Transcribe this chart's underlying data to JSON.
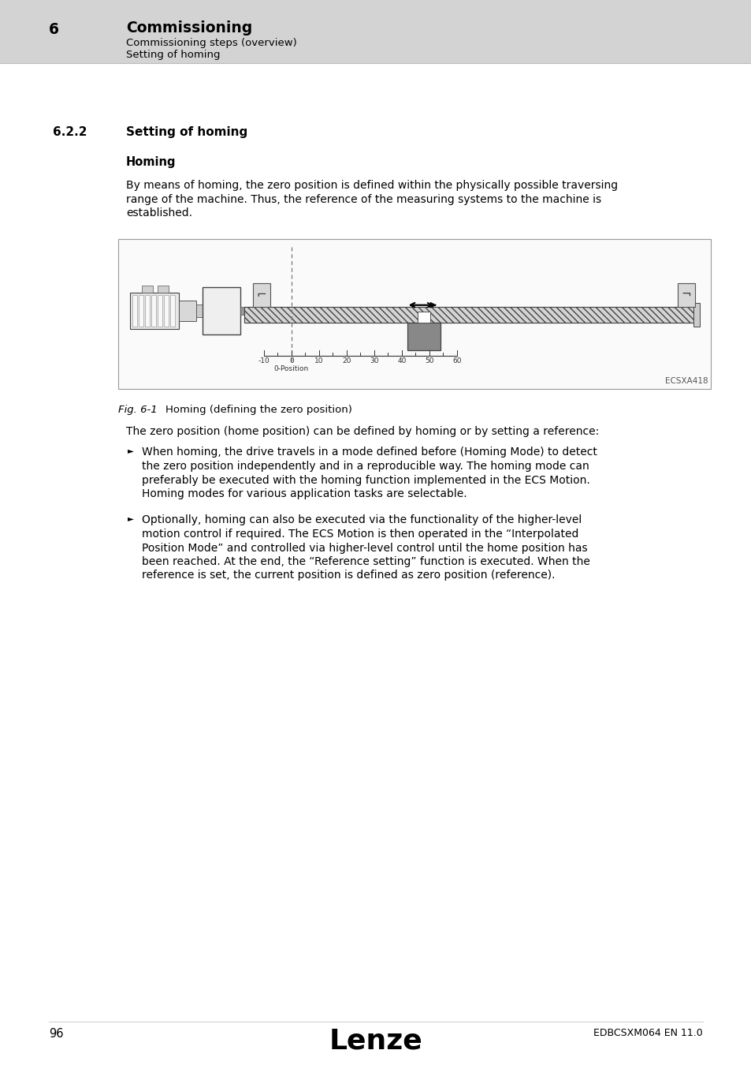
{
  "page_bg": "#ffffff",
  "header_bg": "#d3d3d3",
  "header_number": "6",
  "header_title": "Commissioning",
  "header_sub1": "Commissioning steps (overview)",
  "header_sub2": "Setting of homing",
  "section_number": "6.2.2",
  "section_title": "Setting of homing",
  "subsection_title": "Homing",
  "body_text1_lines": [
    "By means of homing, the zero position is defined within the physically possible traversing",
    "range of the machine. Thus, the reference of the measuring systems to the machine is",
    "established."
  ],
  "fig_caption_label": "Fig. 6-1",
  "fig_caption_text": "Homing (defining the zero position)",
  "fig_label": "ECSXA418",
  "body_text2": "The zero position (home position) can be defined by homing or by setting a reference:",
  "bullet1_lines": [
    "When homing, the drive travels in a mode defined before (Homing Mode) to detect",
    "the zero position independently and in a reproducible way. The homing mode can",
    "preferably be executed with the homing function implemented in the ECS Motion.",
    "Homing modes for various application tasks are selectable."
  ],
  "bullet2_lines": [
    "Optionally, homing can also be executed via the functionality of the higher-level",
    "motion control if required. The ECS Motion is then operated in the “Interpolated",
    "Position Mode” and controlled via higher-level control until the home position has",
    "been reached. At the end, the “Reference setting” function is executed. When the",
    "reference is set, the current position is defined as zero position (reference)."
  ],
  "footer_page": "96",
  "footer_logo": "Lenze",
  "footer_doc": "EDBCSXM064 EN 11.0"
}
